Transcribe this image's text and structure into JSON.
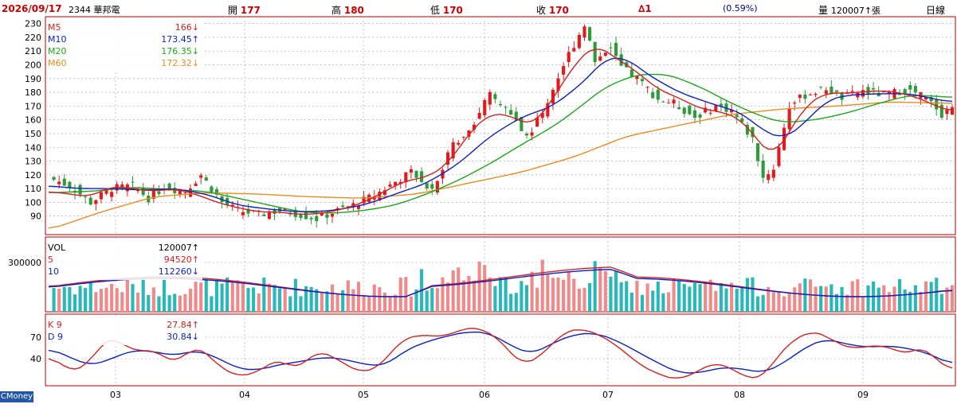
{
  "header": {
    "date": "2026/09/17",
    "stock": "2344 華邦電",
    "open_label": "開",
    "open": "177",
    "high_label": "高",
    "high": "180",
    "low_label": "低",
    "low": "170",
    "close_label": "收",
    "close": "170",
    "change": "∆1",
    "change_pct": "(0.59%)",
    "volume_label": "量",
    "volume": "120007↑張",
    "period": "日線"
  },
  "brand": "CMoney",
  "colors": {
    "up": "#e31a1c",
    "down": "#2e9a3a",
    "ma5": "#d62020",
    "ma10": "#0a1fc8",
    "ma20": "#1aa81a",
    "ma60": "#ee8a1c",
    "vol_up": "#f08a8a",
    "vol_down": "#28b8b8",
    "k": "#d62020",
    "d": "#0a1fc8",
    "frame": "#b00000",
    "grid": "#9aa0a6"
  },
  "chart_data": [
    {
      "type": "candlestick",
      "panel": "price",
      "ylim": [
        80,
        235
      ],
      "yticks": [
        "230",
        "220",
        "210",
        "200",
        "190",
        "180",
        "170",
        "160",
        "150",
        "140",
        "130",
        "120",
        "110",
        "100",
        "90"
      ],
      "legend": [
        {
          "name": "M5",
          "value": "166↓"
        },
        {
          "name": "M10",
          "value": "173.45↑"
        },
        {
          "name": "M20",
          "value": "176.35↓"
        },
        {
          "name": "M60",
          "value": "172.32↓"
        }
      ],
      "x_ticks": [
        "03",
        "04",
        "05",
        "06",
        "07",
        "08",
        "09"
      ],
      "close_path": [
        [
          0,
          118
        ],
        [
          4,
          112
        ],
        [
          8,
          100
        ],
        [
          12,
          110
        ],
        [
          16,
          112
        ],
        [
          19,
          103
        ],
        [
          22,
          111
        ],
        [
          26,
          108
        ],
        [
          29,
          120
        ],
        [
          33,
          100
        ],
        [
          36,
          94
        ],
        [
          40,
          91
        ],
        [
          44,
          94
        ],
        [
          47,
          92
        ],
        [
          51,
          88
        ],
        [
          55,
          94
        ],
        [
          58,
          98
        ],
        [
          62,
          105
        ],
        [
          66,
          115
        ],
        [
          69,
          122
        ],
        [
          73,
          110
        ],
        [
          77,
          142
        ],
        [
          80,
          153
        ],
        [
          84,
          178
        ],
        [
          87,
          168
        ],
        [
          91,
          148
        ],
        [
          94,
          165
        ],
        [
          98,
          200
        ],
        [
          102,
          230
        ],
        [
          104,
          203
        ],
        [
          107,
          214
        ],
        [
          109,
          198
        ],
        [
          112,
          190
        ],
        [
          116,
          175
        ],
        [
          119,
          172
        ],
        [
          123,
          162
        ],
        [
          127,
          170
        ],
        [
          130,
          167
        ],
        [
          134,
          146
        ],
        [
          136,
          118
        ],
        [
          138,
          125
        ],
        [
          141,
          170
        ],
        [
          144,
          178
        ],
        [
          148,
          183
        ],
        [
          151,
          176
        ],
        [
          155,
          181
        ],
        [
          159,
          178
        ],
        [
          163,
          182
        ],
        [
          166,
          178
        ],
        [
          169,
          169
        ],
        [
          170,
          164
        ],
        [
          172,
          170
        ]
      ],
      "ma5_path": [
        [
          0,
          108
        ],
        [
          4,
          106
        ],
        [
          8,
          104
        ],
        [
          12,
          112
        ],
        [
          16,
          110
        ],
        [
          20,
          108
        ],
        [
          24,
          110
        ],
        [
          28,
          106
        ],
        [
          32,
          100
        ],
        [
          36,
          96
        ],
        [
          40,
          93
        ],
        [
          44,
          93
        ],
        [
          48,
          91
        ],
        [
          52,
          92
        ],
        [
          56,
          95
        ],
        [
          60,
          100
        ],
        [
          64,
          108
        ],
        [
          68,
          116
        ],
        [
          72,
          118
        ],
        [
          76,
          128
        ],
        [
          80,
          150
        ],
        [
          84,
          165
        ],
        [
          88,
          163
        ],
        [
          92,
          155
        ],
        [
          96,
          175
        ],
        [
          100,
          200
        ],
        [
          104,
          215
        ],
        [
          108,
          205
        ],
        [
          112,
          195
        ],
        [
          116,
          182
        ],
        [
          120,
          176
        ],
        [
          124,
          168
        ],
        [
          128,
          166
        ],
        [
          132,
          160
        ],
        [
          136,
          140
        ],
        [
          138,
          133
        ],
        [
          140,
          145
        ],
        [
          144,
          170
        ],
        [
          148,
          180
        ],
        [
          152,
          179
        ],
        [
          156,
          181
        ],
        [
          160,
          181
        ],
        [
          164,
          178
        ],
        [
          168,
          172
        ],
        [
          170,
          168
        ],
        [
          172,
          166
        ]
      ],
      "ma10_path": [
        [
          0,
          112
        ],
        [
          6,
          110
        ],
        [
          12,
          110
        ],
        [
          18,
          109
        ],
        [
          24,
          110
        ],
        [
          30,
          106
        ],
        [
          36,
          98
        ],
        [
          42,
          95
        ],
        [
          48,
          93
        ],
        [
          54,
          94
        ],
        [
          60,
          98
        ],
        [
          66,
          106
        ],
        [
          72,
          114
        ],
        [
          78,
          128
        ],
        [
          84,
          148
        ],
        [
          90,
          162
        ],
        [
          96,
          170
        ],
        [
          102,
          188
        ],
        [
          106,
          205
        ],
        [
          110,
          205
        ],
        [
          114,
          193
        ],
        [
          120,
          180
        ],
        [
          126,
          172
        ],
        [
          132,
          165
        ],
        [
          136,
          152
        ],
        [
          140,
          146
        ],
        [
          144,
          158
        ],
        [
          148,
          174
        ],
        [
          152,
          178
        ],
        [
          158,
          179
        ],
        [
          164,
          179
        ],
        [
          170,
          174
        ],
        [
          172,
          173
        ]
      ],
      "ma20_path": [
        [
          0,
          107
        ],
        [
          8,
          108
        ],
        [
          16,
          111
        ],
        [
          24,
          109
        ],
        [
          30,
          108
        ],
        [
          36,
          103
        ],
        [
          42,
          98
        ],
        [
          48,
          93
        ],
        [
          54,
          92
        ],
        [
          60,
          94
        ],
        [
          66,
          98
        ],
        [
          72,
          106
        ],
        [
          78,
          116
        ],
        [
          84,
          128
        ],
        [
          90,
          142
        ],
        [
          96,
          155
        ],
        [
          100,
          166
        ],
        [
          106,
          184
        ],
        [
          112,
          193
        ],
        [
          118,
          193
        ],
        [
          124,
          184
        ],
        [
          130,
          172
        ],
        [
          136,
          162
        ],
        [
          140,
          158
        ],
        [
          146,
          160
        ],
        [
          152,
          165
        ],
        [
          158,
          172
        ],
        [
          164,
          178
        ],
        [
          170,
          177
        ],
        [
          172,
          176
        ]
      ],
      "ma60_path": [
        [
          0,
          80
        ],
        [
          10,
          93
        ],
        [
          20,
          104
        ],
        [
          30,
          107
        ],
        [
          40,
          106
        ],
        [
          50,
          104
        ],
        [
          60,
          103
        ],
        [
          70,
          106
        ],
        [
          80,
          114
        ],
        [
          90,
          122
        ],
        [
          100,
          133
        ],
        [
          110,
          148
        ],
        [
          120,
          156
        ],
        [
          130,
          164
        ],
        [
          140,
          168
        ],
        [
          150,
          170
        ],
        [
          160,
          173
        ],
        [
          172,
          172
        ]
      ]
    },
    {
      "type": "bar",
      "panel": "volume",
      "ylim": [
        0,
        450000
      ],
      "yticks": [
        "300000"
      ],
      "legend": [
        {
          "name": "VOL",
          "value": "120007↑"
        },
        {
          "name": "5",
          "value": "94520↑"
        },
        {
          "name": "10",
          "value": "112260↓"
        }
      ]
    },
    {
      "type": "line",
      "panel": "kd",
      "ylim": [
        0,
        100
      ],
      "yticks": [
        "70",
        "40"
      ],
      "legend": [
        {
          "name": "K 9",
          "value": "27.84↑"
        },
        {
          "name": "D 9",
          "value": "30.84↓"
        }
      ],
      "k_path": [
        [
          0,
          48
        ],
        [
          2,
          32
        ],
        [
          4,
          24
        ],
        [
          7,
          26
        ],
        [
          10,
          62
        ],
        [
          13,
          70
        ],
        [
          16,
          48
        ],
        [
          19,
          55
        ],
        [
          22,
          42
        ],
        [
          25,
          34
        ],
        [
          28,
          62
        ],
        [
          32,
          32
        ],
        [
          36,
          14
        ],
        [
          40,
          22
        ],
        [
          44,
          42
        ],
        [
          47,
          22
        ],
        [
          51,
          52
        ],
        [
          55,
          40
        ],
        [
          59,
          20
        ],
        [
          63,
          28
        ],
        [
          67,
          66
        ],
        [
          71,
          74
        ],
        [
          75,
          70
        ],
        [
          79,
          82
        ],
        [
          82,
          84
        ],
        [
          86,
          66
        ],
        [
          90,
          30
        ],
        [
          94,
          45
        ],
        [
          98,
          78
        ],
        [
          102,
          82
        ],
        [
          104,
          76
        ],
        [
          108,
          60
        ],
        [
          112,
          34
        ],
        [
          116,
          18
        ],
        [
          120,
          10
        ],
        [
          124,
          24
        ],
        [
          127,
          36
        ],
        [
          131,
          22
        ],
        [
          134,
          10
        ],
        [
          136,
          14
        ],
        [
          139,
          46
        ],
        [
          142,
          68
        ],
        [
          145,
          78
        ],
        [
          148,
          74
        ],
        [
          150,
          60
        ],
        [
          154,
          54
        ],
        [
          158,
          60
        ],
        [
          162,
          50
        ],
        [
          164,
          46
        ],
        [
          167,
          60
        ],
        [
          170,
          26
        ],
        [
          172,
          28
        ]
      ],
      "d_path": [
        [
          0,
          55
        ],
        [
          4,
          42
        ],
        [
          8,
          30
        ],
        [
          12,
          40
        ],
        [
          16,
          52
        ],
        [
          20,
          50
        ],
        [
          24,
          44
        ],
        [
          28,
          52
        ],
        [
          32,
          42
        ],
        [
          36,
          26
        ],
        [
          40,
          24
        ],
        [
          44,
          32
        ],
        [
          48,
          36
        ],
        [
          52,
          42
        ],
        [
          56,
          40
        ],
        [
          60,
          32
        ],
        [
          64,
          30
        ],
        [
          68,
          52
        ],
        [
          72,
          64
        ],
        [
          76,
          72
        ],
        [
          80,
          78
        ],
        [
          84,
          76
        ],
        [
          88,
          58
        ],
        [
          92,
          46
        ],
        [
          96,
          62
        ],
        [
          100,
          74
        ],
        [
          104,
          76
        ],
        [
          108,
          66
        ],
        [
          112,
          50
        ],
        [
          116,
          34
        ],
        [
          120,
          20
        ],
        [
          124,
          20
        ],
        [
          128,
          28
        ],
        [
          132,
          26
        ],
        [
          136,
          20
        ],
        [
          140,
          34
        ],
        [
          144,
          56
        ],
        [
          148,
          68
        ],
        [
          152,
          60
        ],
        [
          156,
          56
        ],
        [
          160,
          58
        ],
        [
          164,
          54
        ],
        [
          168,
          46
        ],
        [
          172,
          31
        ]
      ]
    }
  ]
}
